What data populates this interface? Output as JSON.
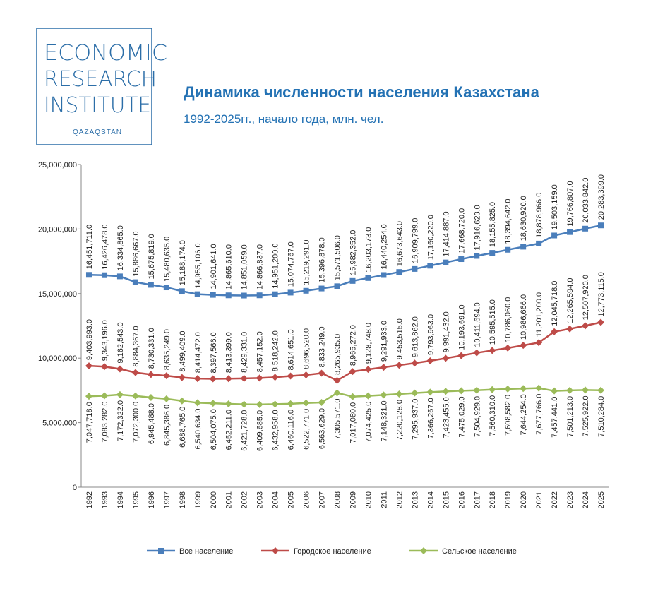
{
  "logo": {
    "lines": [
      "ECONOMIC",
      "RESEARCH",
      "INSTITUTE"
    ],
    "country": "QAZAQSTAN"
  },
  "chart_data": {
    "type": "line",
    "title": "Динамика численности населения Казахстана",
    "subtitle": "1992-2025гг., начало года, млн. чел.",
    "categories": [
      "1992",
      "1993",
      "1994",
      "1995",
      "1996",
      "1997",
      "1998",
      "1999",
      "2000",
      "2001",
      "2002",
      "2003",
      "2004",
      "2005",
      "2006",
      "2007",
      "2008",
      "2009",
      "2010",
      "2011",
      "2012",
      "2013",
      "2014",
      "2015",
      "2016",
      "2017",
      "2018",
      "2019",
      "2020",
      "2021",
      "2022",
      "2023",
      "2024",
      "2025"
    ],
    "ylim": [
      0,
      25000000
    ],
    "yticks": [
      0,
      {
        "value": 5000000,
        "label": "5,000,000"
      },
      {
        "value": 10000000,
        "label": "10,000,000"
      },
      {
        "value": 15000000,
        "label": "15,000,000"
      },
      {
        "value": 20000000,
        "label": "20,000,000"
      },
      {
        "value": 25000000,
        "label": "25,000,000"
      }
    ],
    "grid": false,
    "series": [
      {
        "name": "Все население",
        "color": "#4a7ebb",
        "marker": "square",
        "label_side": "above",
        "values": [
          16451711,
          16426478,
          16334865,
          15886667,
          15675819,
          15480635,
          15188174,
          14955106,
          14901641,
          14865610,
          14851059,
          14866837,
          14951200,
          15074767,
          15219291,
          15396878,
          15571506,
          15982352,
          16203173,
          16440254,
          16673643,
          16909799,
          17160220,
          17414887,
          17668720,
          17916623,
          18155825,
          18394642,
          18630920,
          18878966,
          19503159,
          19766807,
          20033842,
          20283399
        ],
        "value_labels": [
          "16,451,711.0",
          "16,426,478.0",
          "16,334,865.0",
          "15,886,667.0",
          "15,675,819.0",
          "15,480,635.0",
          "15,188,174.0",
          "14,955,106.0",
          "14,901,641.0",
          "14,865,610.0",
          "14,851,059.0",
          "14,866,837.0",
          "14,951,200.0",
          "15,074,767.0",
          "15,219,291.0",
          "15,396,878.0",
          "15,571,506.0",
          "15,982,352.0",
          "16,203,173.0",
          "16,440,254.0",
          "16,673,643.0",
          "16,909,799.0",
          "17,160,220.0",
          "17,414,887.0",
          "17,668,720.0",
          "17,916,623.0",
          "18,155,825.0",
          "18,394,642.0",
          "18,630,920.0",
          "18,878,966.0",
          "19,503,159.0",
          "19,766,807.0",
          "20,033,842.0",
          "20,283,399.0"
        ]
      },
      {
        "name": "Городское население",
        "color": "#be4b48",
        "marker": "diamond",
        "label_side": "above",
        "values": [
          9403993,
          9343196,
          9162543,
          8884367,
          8730331,
          8635249,
          8499409,
          8414472,
          8397566,
          8413399,
          8429331,
          8457152,
          8518242,
          8614651,
          8696520,
          8833249,
          8265935,
          8965272,
          9128748,
          9291933,
          9453515,
          9613862,
          9793963,
          9991432,
          10193691,
          10411694,
          10595515,
          10786060,
          10986666,
          11201200,
          12045718,
          12265594,
          12507920,
          12773115
        ],
        "value_labels": [
          "9,403,993.0",
          "9,343,196.0",
          "9,162,543.0",
          "8,884,367.0",
          "8,730,331.0",
          "8,635,249.0",
          "8,499,409.0",
          "8,414,472.0",
          "8,397,566.0",
          "8,413,399.0",
          "8,429,331.0",
          "8,457,152.0",
          "8,518,242.0",
          "8,614,651.0",
          "8,696,520.0",
          "8,833,249.0",
          "8,265,935.0",
          "8,965,272.0",
          "9,128,748.0",
          "9,291,933.0",
          "9,453,515.0",
          "9,613,862.0",
          "9,793,963.0",
          "9,991,432.0",
          "10,193,691.0",
          "10,411,694.0",
          "10,595,515.0",
          "10,786,060.0",
          "10,986,666.0",
          "11,201,200.0",
          "12,045,718.0",
          "12,265,594.0",
          "12,507,920.0",
          "12,773,115.0"
        ]
      },
      {
        "name": "Сельское население",
        "color": "#9bbb59",
        "marker": "diamond",
        "label_side": "below",
        "values": [
          7047718,
          7083282,
          7172322,
          7072300,
          6945488,
          6845386,
          6688765,
          6540634,
          6504075,
          6452211,
          6421728,
          6409685,
          6432958,
          6460116,
          6522771,
          6563629,
          7305571,
          7017080,
          7074425,
          7148321,
          7220128,
          7295937,
          7366257,
          7423455,
          7475029,
          7504929,
          7560310,
          7608582,
          7644254,
          7677766,
          7457441,
          7501213,
          7525922,
          7510284
        ],
        "value_labels": [
          "7,047,718.0",
          "7,083,282.0",
          "7,172,322.0",
          "7,072,300.0",
          "6,945,488.0",
          "6,845,386.0",
          "6,688,765.0",
          "6,540,634.0",
          "6,504,075.0",
          "6,452,211.0",
          "6,421,728.0",
          "6,409,685.0",
          "6,432,958.0",
          "6,460,116.0",
          "6,522,771.0",
          "6,563,629.0",
          "7,305,571.0",
          "7,017,080.0",
          "7,074,425.0",
          "7,148,321.0",
          "7,220,128.0",
          "7,295,937.0",
          "7,366,257.0",
          "7,423,455.0",
          "7,475,029.0",
          "7,504,929.0",
          "7,560,310.0",
          "7,608,582.0",
          "7,644,254.0",
          "7,677,766.0",
          "7,457,441.0",
          "7,501,213.0",
          "7,525,922.0",
          "7,510,284.0"
        ]
      }
    ]
  }
}
